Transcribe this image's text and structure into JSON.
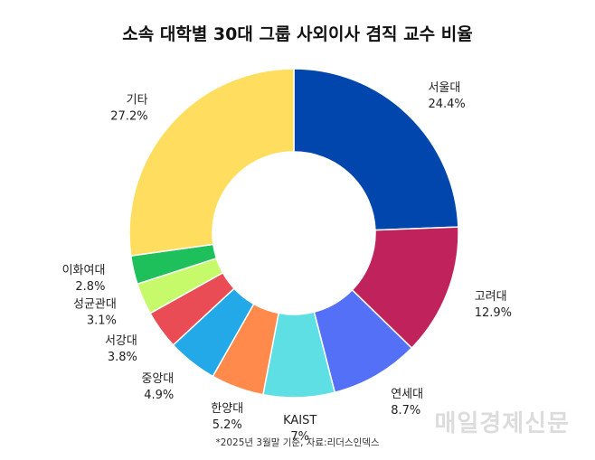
{
  "chart_data": {
    "type": "pie",
    "title": "소속 대학별 30대 그룹 사외이사 겸직 교수 비율",
    "donut": true,
    "unit": "%",
    "slices": [
      {
        "label": "서울대",
        "value": 24.4,
        "value_text": "24.4%",
        "color": "#0046AD"
      },
      {
        "label": "고려대",
        "value": 12.9,
        "value_text": "12.9%",
        "color": "#C0225B"
      },
      {
        "label": "연세대",
        "value": 8.7,
        "value_text": "8.7%",
        "color": "#5470F7"
      },
      {
        "label": "KAIST",
        "value": 7,
        "value_text": "7%",
        "color": "#5EDFE3"
      },
      {
        "label": "한양대",
        "value": 5.2,
        "value_text": "5.2%",
        "color": "#FF8A4C"
      },
      {
        "label": "중앙대",
        "value": 4.9,
        "value_text": "4.9%",
        "color": "#23A8E8"
      },
      {
        "label": "서강대",
        "value": 3.8,
        "value_text": "3.8%",
        "color": "#EA4C56"
      },
      {
        "label": "성균관대",
        "value": 3.1,
        "value_text": "3.1%",
        "color": "#C6FA6A"
      },
      {
        "label": "이화여대",
        "value": 2.8,
        "value_text": "2.8%",
        "color": "#1DC05A"
      },
      {
        "label": "기타",
        "value": 27.2,
        "value_text": "27.2%",
        "color": "#FFDE5F"
      }
    ],
    "note": "*2025년 3월말 기준, 자료:리더스인덱스",
    "legend": "none"
  },
  "watermark": "매일경제신문"
}
